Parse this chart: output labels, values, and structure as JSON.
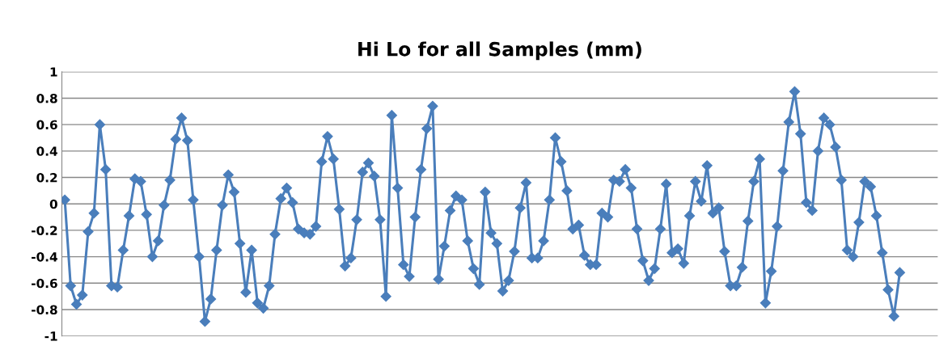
{
  "chart_data": {
    "type": "line",
    "title": "Hi Lo for all Samples (mm)",
    "categories": [
      null,
      null,
      null,
      null,
      null,
      null,
      null,
      null,
      null,
      null,
      null,
      null,
      null,
      null,
      null,
      null,
      null,
      null,
      null,
      null,
      null,
      null,
      null,
      null,
      null,
      null,
      null,
      null,
      null,
      null,
      null,
      null,
      null,
      null,
      null,
      null,
      null,
      null,
      null,
      null,
      null,
      null,
      null,
      null,
      null,
      null,
      null,
      null,
      null,
      null,
      null,
      null,
      null,
      null,
      null,
      null,
      null,
      null,
      null,
      null,
      null,
      null,
      null,
      null,
      null,
      null,
      null,
      null,
      null,
      null,
      null,
      null,
      null,
      null,
      null,
      null,
      null,
      null,
      null,
      null,
      null,
      null,
      null,
      null,
      null,
      null,
      null,
      null,
      null,
      null,
      null,
      null,
      null,
      null,
      null,
      null,
      null,
      null,
      null,
      null,
      null,
      null,
      null,
      null,
      null,
      null,
      null,
      null,
      null,
      null,
      null,
      null,
      null,
      null,
      null,
      null,
      null,
      null,
      null,
      null,
      null,
      null,
      null,
      null,
      null,
      null,
      null,
      null,
      null,
      null,
      null,
      null,
      null,
      null,
      null,
      null,
      null,
      null,
      null,
      null,
      null,
      null,
      null,
      null,
      null,
      null,
      null,
      null,
      null,
      null
    ],
    "series": [
      {
        "color": "#4a7ebb",
        "values": [
          0.03,
          -0.62,
          -0.76,
          -0.69,
          -0.21,
          -0.07,
          0.6,
          0.26,
          -0.62,
          -0.63,
          -0.35,
          -0.09,
          0.19,
          0.17,
          -0.08,
          -0.4,
          -0.28,
          -0.01,
          0.18,
          0.49,
          0.65,
          0.48,
          0.03,
          -0.4,
          -0.89,
          -0.72,
          -0.35,
          -0.01,
          0.22,
          0.09,
          -0.3,
          -0.67,
          -0.35,
          -0.75,
          -0.79,
          -0.62,
          -0.23,
          0.04,
          0.12,
          0.01,
          -0.19,
          -0.22,
          -0.23,
          -0.17,
          0.32,
          0.51,
          0.34,
          -0.04,
          -0.47,
          -0.41,
          -0.12,
          0.24,
          0.31,
          0.21,
          -0.12,
          -0.7,
          0.67,
          0.12,
          -0.46,
          -0.55,
          -0.1,
          0.26,
          0.57,
          0.74,
          -0.57,
          -0.32,
          -0.05,
          0.06,
          0.03,
          -0.28,
          -0.49,
          -0.61,
          0.09,
          -0.22,
          -0.3,
          -0.66,
          -0.58,
          -0.36,
          -0.03,
          0.16,
          -0.41,
          -0.41,
          -0.28,
          0.03,
          0.5,
          0.32,
          0.1,
          -0.19,
          -0.16,
          -0.39,
          -0.46,
          -0.46,
          -0.07,
          -0.1,
          0.18,
          0.17,
          0.26,
          0.12,
          -0.19,
          -0.43,
          -0.58,
          -0.49,
          -0.19,
          0.15,
          -0.37,
          -0.34,
          -0.45,
          -0.09,
          0.17,
          0.02,
          0.29,
          -0.07,
          -0.03,
          -0.36,
          -0.62,
          -0.62,
          -0.48,
          -0.13,
          0.17,
          0.34,
          -0.75,
          -0.51,
          -0.17,
          0.25,
          0.62,
          0.85,
          0.53,
          0.01,
          -0.05,
          0.4,
          0.65,
          0.6,
          0.43,
          0.18,
          -0.35,
          -0.4,
          -0.14,
          0.17,
          0.13,
          -0.09,
          -0.37,
          -0.65,
          -0.85,
          -0.52,
          null,
          null,
          null,
          null,
          null,
          null
        ]
      }
    ],
    "ylim": [
      -1,
      1
    ],
    "yticks": [
      -1,
      -0.8,
      -0.6,
      -0.4,
      -0.2,
      0,
      0.2,
      0.4,
      0.6,
      0.8,
      1
    ],
    "grid": "y",
    "marker": "diamond",
    "line_style": "solid",
    "tick_labels": "y"
  }
}
